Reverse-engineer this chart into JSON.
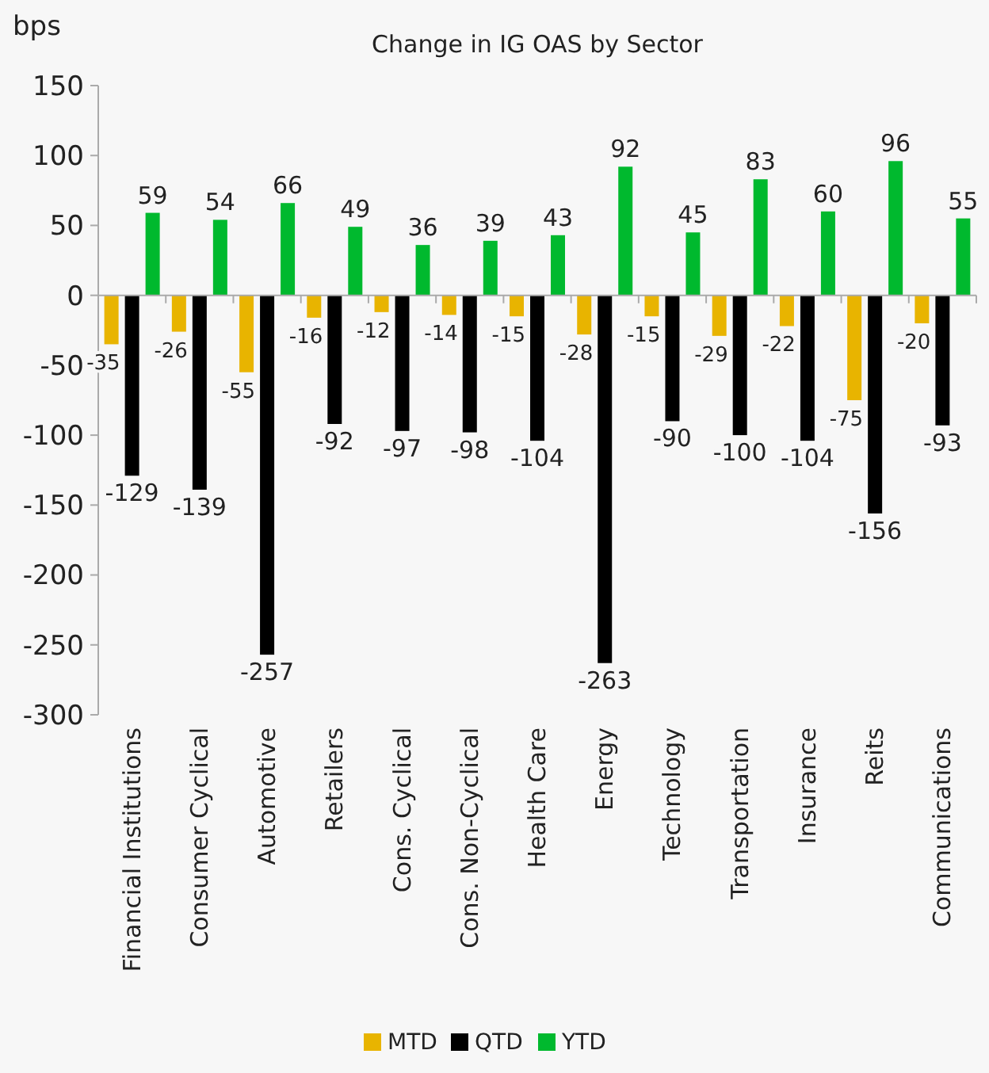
{
  "chart_data": {
    "type": "bar",
    "title": "Change in IG OAS by Sector",
    "ylabel": "bps",
    "categories": [
      "Financial Institutions",
      "Consumer Cyclical",
      "Automotive",
      "Retailers",
      "Cons. Cyclical",
      "Cons. Non-Cyclical",
      "Health Care",
      "Energy",
      "Technology",
      "Transportation",
      "Insurance",
      "Reits",
      "Communications"
    ],
    "series": [
      {
        "name": "MTD",
        "color": "#e8b400",
        "values": [
          -35,
          -26,
          -55,
          -16,
          -12,
          -14,
          -15,
          -28,
          -15,
          -29,
          -22,
          -75,
          -20
        ]
      },
      {
        "name": "QTD",
        "color": "#000000",
        "values": [
          -129,
          -139,
          -257,
          -92,
          -97,
          -98,
          -104,
          -263,
          -90,
          -100,
          -104,
          -156,
          -93
        ]
      },
      {
        "name": "YTD",
        "color": "#00b92e",
        "values": [
          59,
          54,
          66,
          49,
          36,
          39,
          43,
          92,
          45,
          83,
          60,
          96,
          55
        ]
      }
    ],
    "ylim": [
      -300,
      150
    ],
    "yticks": [
      -300,
      -250,
      -200,
      -150,
      -100,
      -50,
      0,
      50,
      100,
      150
    ],
    "data_labels": true,
    "legend": "bottom"
  }
}
